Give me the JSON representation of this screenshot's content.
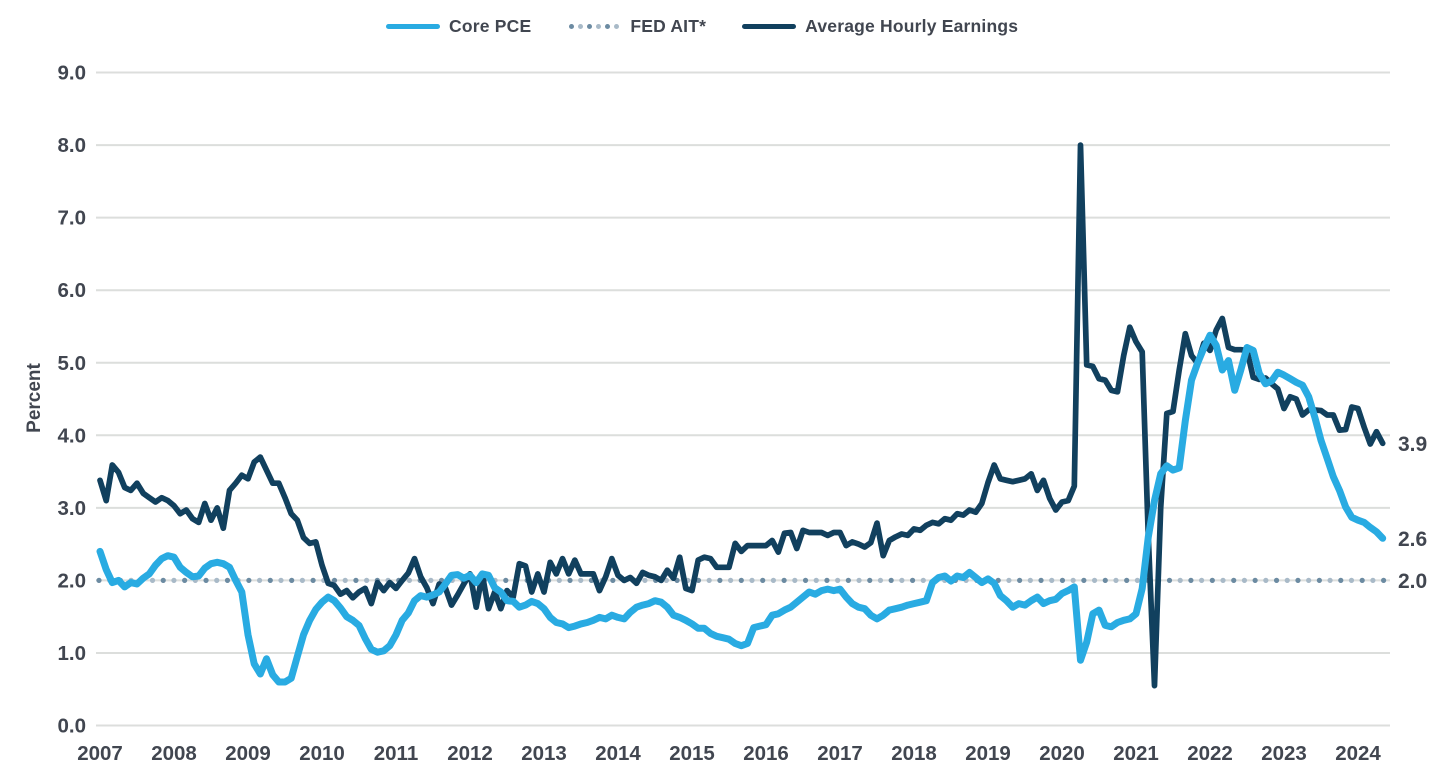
{
  "legend": {
    "items": [
      {
        "label": "Core PCE",
        "style": "solid",
        "color": "#29ABE2"
      },
      {
        "label": "FED AIT*",
        "style": "dotted",
        "color": "#6C8BA2",
        "color2": "#A9BAC8"
      },
      {
        "label": "Average Hourly Earnings",
        "style": "solid",
        "color": "#11405E"
      }
    ]
  },
  "colors": {
    "core_pce": "#29ABE2",
    "fed_ait_dot_a": "#6C8BA2",
    "fed_ait_dot_b": "#A9BAC8",
    "avg_hourly_earnings": "#11405E",
    "text": "#414650",
    "gridline": "#DCDEDC",
    "background": "#FFFFFF"
  },
  "chart_data": {
    "type": "line",
    "title": "",
    "ylabel": "Percent",
    "xlabel": "",
    "ylim": [
      0.0,
      9.0
    ],
    "y_tick_step": 1.0,
    "y_ticks": [
      "0.0",
      "1.0",
      "2.0",
      "3.0",
      "4.0",
      "5.0",
      "6.0",
      "7.0",
      "8.0",
      "9.0"
    ],
    "x_ticks": [
      "2007",
      "2008",
      "2009",
      "2010",
      "2011",
      "2012",
      "2013",
      "2014",
      "2015",
      "2016",
      "2017",
      "2018",
      "2019",
      "2020",
      "2021",
      "2022",
      "2023",
      "2024"
    ],
    "grid": true,
    "legend_position": "top",
    "x_start_month": "2007-01",
    "x_end_month": "2024-05",
    "frequency": "monthly",
    "end_labels": [
      {
        "text": "3.9",
        "value": 3.89,
        "series": "Average Hourly Earnings"
      },
      {
        "text": "2.6",
        "value": 2.58,
        "series": "Core PCE"
      },
      {
        "text": "2.0",
        "value": 2.0,
        "series": "FED AIT*"
      }
    ],
    "series": [
      {
        "name": "Core PCE",
        "color": "#29ABE2",
        "style": "solid",
        "values": [
          2.4,
          2.15,
          1.97,
          2.0,
          1.91,
          1.97,
          1.95,
          2.03,
          2.09,
          2.21,
          2.3,
          2.34,
          2.32,
          2.18,
          2.11,
          2.05,
          2.06,
          2.17,
          2.23,
          2.25,
          2.23,
          2.18,
          2.0,
          1.84,
          1.25,
          0.85,
          0.71,
          0.92,
          0.7,
          0.6,
          0.6,
          0.65,
          0.95,
          1.25,
          1.45,
          1.6,
          1.7,
          1.77,
          1.72,
          1.62,
          1.5,
          1.45,
          1.38,
          1.2,
          1.05,
          1.01,
          1.03,
          1.1,
          1.25,
          1.45,
          1.55,
          1.72,
          1.79,
          1.77,
          1.8,
          1.84,
          1.95,
          2.07,
          2.08,
          2.03,
          2.07,
          1.97,
          2.09,
          2.07,
          1.9,
          1.84,
          1.72,
          1.71,
          1.63,
          1.66,
          1.71,
          1.68,
          1.61,
          1.49,
          1.42,
          1.4,
          1.35,
          1.37,
          1.4,
          1.42,
          1.45,
          1.49,
          1.47,
          1.52,
          1.49,
          1.47,
          1.56,
          1.63,
          1.66,
          1.68,
          1.72,
          1.7,
          1.63,
          1.52,
          1.49,
          1.45,
          1.4,
          1.34,
          1.34,
          1.27,
          1.23,
          1.21,
          1.19,
          1.13,
          1.1,
          1.13,
          1.35,
          1.37,
          1.39,
          1.52,
          1.54,
          1.59,
          1.63,
          1.7,
          1.77,
          1.84,
          1.81,
          1.86,
          1.88,
          1.86,
          1.88,
          1.77,
          1.68,
          1.63,
          1.61,
          1.52,
          1.47,
          1.52,
          1.59,
          1.61,
          1.63,
          1.66,
          1.68,
          1.7,
          1.72,
          1.97,
          2.04,
          2.06,
          1.99,
          2.06,
          2.04,
          2.11,
          2.04,
          1.97,
          2.02,
          1.96,
          1.79,
          1.72,
          1.63,
          1.68,
          1.66,
          1.72,
          1.77,
          1.68,
          1.72,
          1.74,
          1.82,
          1.86,
          1.91,
          0.9,
          1.15,
          1.54,
          1.59,
          1.38,
          1.36,
          1.42,
          1.45,
          1.47,
          1.54,
          1.89,
          2.6,
          3.1,
          3.47,
          3.58,
          3.52,
          3.55,
          4.2,
          4.76,
          5.0,
          5.2,
          5.38,
          5.24,
          4.9,
          5.03,
          4.62,
          4.9,
          5.21,
          5.17,
          4.85,
          4.71,
          4.75,
          4.87,
          4.83,
          4.78,
          4.73,
          4.69,
          4.53,
          4.25,
          3.93,
          3.68,
          3.43,
          3.24,
          3.01,
          2.87,
          2.83,
          2.8,
          2.73,
          2.67,
          2.58
        ]
      },
      {
        "name": "FED AIT*",
        "style": "dotted",
        "constant_value": 2.0,
        "color": "#6C8BA2"
      },
      {
        "name": "Average Hourly Earnings",
        "color": "#11405E",
        "style": "solid",
        "values": [
          3.38,
          3.1,
          3.59,
          3.49,
          3.28,
          3.24,
          3.34,
          3.2,
          3.14,
          3.08,
          3.14,
          3.1,
          3.03,
          2.92,
          2.97,
          2.85,
          2.8,
          3.06,
          2.83,
          3.0,
          2.72,
          3.24,
          3.34,
          3.45,
          3.4,
          3.63,
          3.7,
          3.52,
          3.34,
          3.34,
          3.14,
          2.92,
          2.83,
          2.59,
          2.51,
          2.53,
          2.21,
          1.96,
          1.93,
          1.81,
          1.86,
          1.76,
          1.84,
          1.89,
          1.68,
          1.97,
          1.86,
          1.97,
          1.89,
          2.0,
          2.1,
          2.3,
          2.05,
          1.9,
          1.68,
          1.95,
          1.9,
          1.66,
          1.8,
          1.95,
          2.09,
          1.63,
          2.08,
          1.61,
          1.84,
          1.61,
          1.86,
          1.77,
          2.23,
          2.2,
          1.84,
          2.09,
          1.84,
          2.25,
          2.09,
          2.3,
          2.09,
          2.28,
          2.09,
          2.09,
          2.09,
          1.86,
          2.05,
          2.3,
          2.07,
          2.0,
          2.04,
          1.96,
          2.11,
          2.07,
          2.05,
          2.0,
          2.14,
          2.03,
          2.32,
          1.89,
          1.86,
          2.28,
          2.32,
          2.3,
          2.18,
          2.18,
          2.18,
          2.51,
          2.4,
          2.48,
          2.48,
          2.48,
          2.48,
          2.55,
          2.39,
          2.65,
          2.66,
          2.44,
          2.69,
          2.66,
          2.66,
          2.66,
          2.62,
          2.66,
          2.66,
          2.48,
          2.53,
          2.5,
          2.46,
          2.52,
          2.79,
          2.34,
          2.55,
          2.6,
          2.64,
          2.62,
          2.71,
          2.69,
          2.76,
          2.8,
          2.78,
          2.85,
          2.83,
          2.92,
          2.9,
          2.97,
          2.94,
          3.06,
          3.35,
          3.59,
          3.4,
          3.38,
          3.36,
          3.38,
          3.4,
          3.47,
          3.24,
          3.38,
          3.13,
          2.97,
          3.08,
          3.1,
          3.3,
          8.0,
          4.97,
          4.95,
          4.78,
          4.76,
          4.62,
          4.6,
          5.1,
          5.49,
          5.29,
          5.15,
          2.6,
          0.55,
          3.0,
          4.3,
          4.33,
          4.9,
          5.4,
          5.1,
          4.99,
          5.27,
          5.17,
          5.45,
          5.61,
          5.21,
          5.18,
          5.18,
          5.17,
          4.8,
          4.77,
          4.79,
          4.71,
          4.64,
          4.37,
          4.53,
          4.5,
          4.28,
          4.35,
          4.35,
          4.34,
          4.28,
          4.28,
          4.07,
          4.08,
          4.39,
          4.37,
          4.11,
          3.88,
          4.05,
          3.89
        ]
      }
    ]
  }
}
